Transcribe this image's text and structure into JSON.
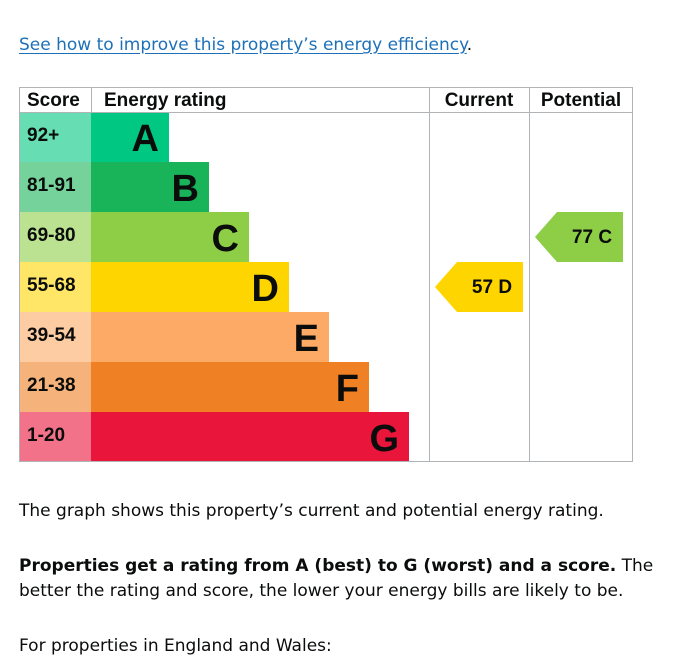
{
  "intro": {
    "link_text": "See how to improve this property’s energy efficiency",
    "link_suffix": "."
  },
  "chart_data": {
    "type": "table",
    "columns": [
      "Score",
      "Energy rating",
      "Current",
      "Potential"
    ],
    "bands": [
      {
        "score": "92+",
        "letter": "A",
        "color": "#00c781"
      },
      {
        "score": "81-91",
        "letter": "B",
        "color": "#19b459"
      },
      {
        "score": "69-80",
        "letter": "C",
        "color": "#8dce46"
      },
      {
        "score": "55-68",
        "letter": "D",
        "color": "#ffd500"
      },
      {
        "score": "39-54",
        "letter": "E",
        "color": "#fcaa65"
      },
      {
        "score": "21-38",
        "letter": "F",
        "color": "#ef8023"
      },
      {
        "score": "1-20",
        "letter": "G",
        "color": "#e9153b"
      }
    ],
    "current": {
      "score": 57,
      "letter": "D",
      "label": "57 D",
      "color": "#ffd500"
    },
    "potential": {
      "score": 77,
      "letter": "C",
      "label": "77 C",
      "color": "#8dce46"
    }
  },
  "body_text": {
    "graph_description": "The graph shows this property’s current and potential energy rating.",
    "ratings_bold": "Properties get a rating from A (best) to G (worst) and a score.",
    "ratings_rest": " The better the rating and score, the lower your energy bills are likely to be.",
    "england_wales": "For properties in England and Wales:"
  }
}
